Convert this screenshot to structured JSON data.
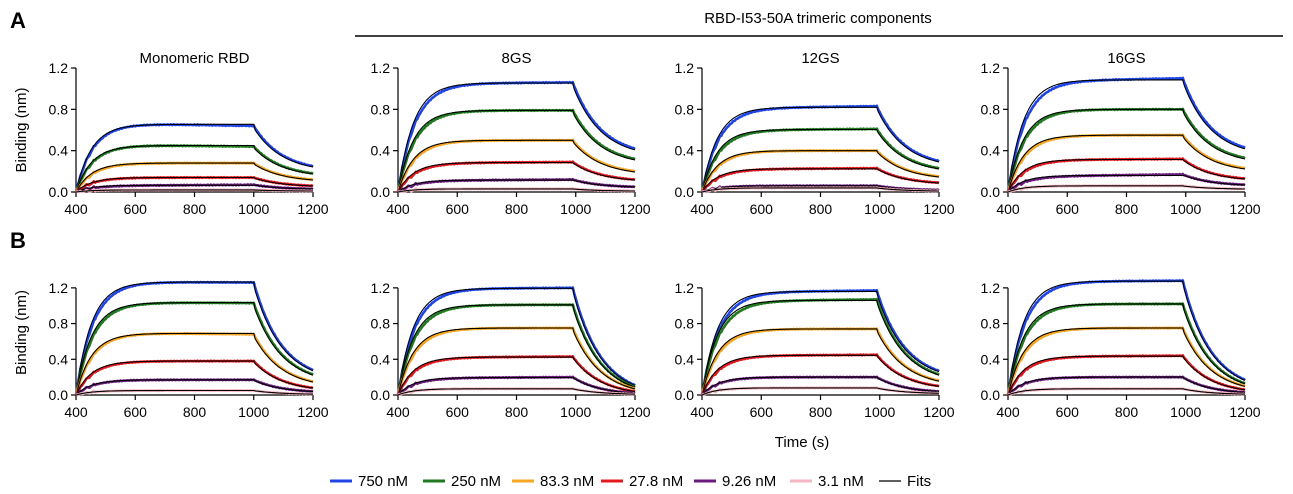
{
  "header": "RBD-I53-50A trimeric components",
  "panel_labels": [
    "A",
    "B"
  ],
  "legend": [
    {
      "label": "750 nM",
      "color": "#1f45e6"
    },
    {
      "label": "250 nM",
      "color": "#1f7a1f"
    },
    {
      "label": "83.3 nM",
      "color": "#f5a623"
    },
    {
      "label": "27.8 nM",
      "color": "#e3191f"
    },
    {
      "label": "9.26 nM",
      "color": "#6a1b7c"
    },
    {
      "label": "3.1 nM",
      "color": "#f4b6c2"
    },
    {
      "label": "Fits",
      "color": "#000000"
    }
  ],
  "chart_data": [
    {
      "type": "line",
      "row": "A",
      "title": "Monomeric RBD",
      "ylabel": "Binding (nm)",
      "xlabel": "",
      "xlim": [
        400,
        1200
      ],
      "ylim": [
        0,
        1.2
      ],
      "xticks": [
        400,
        600,
        800,
        1000,
        1200
      ],
      "yticks": [
        0.0,
        0.4,
        0.8,
        1.2
      ],
      "tick_labels_y": [
        "0.0",
        "0.4",
        "0.8",
        "1.2"
      ],
      "association_end": 1000,
      "series": [
        {
          "name": "750 nM",
          "plateau": 0.67,
          "end": 0.64,
          "final": 0.25
        },
        {
          "name": "250 nM",
          "plateau": 0.46,
          "end": 0.44,
          "final": 0.18
        },
        {
          "name": "83.3 nM",
          "plateau": 0.28,
          "end": 0.28,
          "final": 0.12
        },
        {
          "name": "27.8 nM",
          "plateau": 0.14,
          "end": 0.14,
          "final": 0.06
        },
        {
          "name": "9.26 nM",
          "plateau": 0.06,
          "end": 0.07,
          "final": 0.03
        },
        {
          "name": "3.1 nM",
          "plateau": 0.02,
          "end": 0.02,
          "final": 0.01
        }
      ]
    },
    {
      "type": "line",
      "row": "A",
      "title": "8GS",
      "ylabel": "",
      "xlabel": "",
      "xlim": [
        400,
        1200
      ],
      "ylim": [
        0,
        1.2
      ],
      "xticks": [
        400,
        600,
        800,
        1000,
        1200
      ],
      "yticks": [
        0.0,
        0.4,
        0.8,
        1.2
      ],
      "tick_labels_y": [
        "0.0",
        "0.4",
        "0.8",
        "1.2"
      ],
      "association_end": 990,
      "series": [
        {
          "name": "750 nM",
          "plateau": 1.05,
          "end": 1.06,
          "final": 0.42
        },
        {
          "name": "250 nM",
          "plateau": 0.79,
          "end": 0.79,
          "final": 0.32
        },
        {
          "name": "83.3 nM",
          "plateau": 0.5,
          "end": 0.5,
          "final": 0.2
        },
        {
          "name": "27.8 nM",
          "plateau": 0.28,
          "end": 0.29,
          "final": 0.12
        },
        {
          "name": "9.26 nM",
          "plateau": 0.11,
          "end": 0.12,
          "final": 0.05
        },
        {
          "name": "3.1 nM",
          "plateau": 0.03,
          "end": 0.03,
          "final": 0.01
        }
      ]
    },
    {
      "type": "line",
      "row": "A",
      "title": "12GS",
      "ylabel": "",
      "xlabel": "",
      "xlim": [
        400,
        1200
      ],
      "ylim": [
        0,
        1.2
      ],
      "xticks": [
        400,
        600,
        800,
        1000,
        1200
      ],
      "yticks": [
        0.0,
        0.4,
        0.8,
        1.2
      ],
      "tick_labels_y": [
        "0.0",
        "0.4",
        "0.8",
        "1.2"
      ],
      "association_end": 990,
      "series": [
        {
          "name": "750 nM",
          "plateau": 0.81,
          "end": 0.83,
          "final": 0.3
        },
        {
          "name": "250 nM",
          "plateau": 0.6,
          "end": 0.61,
          "final": 0.23
        },
        {
          "name": "83.3 nM",
          "plateau": 0.4,
          "end": 0.4,
          "final": 0.15
        },
        {
          "name": "27.8 nM",
          "plateau": 0.22,
          "end": 0.23,
          "final": 0.09
        },
        {
          "name": "9.26 nM",
          "plateau": 0.06,
          "end": 0.06,
          "final": 0.02
        },
        {
          "name": "3.1 nM",
          "plateau": 0.04,
          "end": 0.04,
          "final": 0.01
        }
      ]
    },
    {
      "type": "line",
      "row": "A",
      "title": "16GS",
      "ylabel": "",
      "xlabel": "",
      "xlim": [
        400,
        1200
      ],
      "ylim": [
        0,
        1.2
      ],
      "xticks": [
        400,
        600,
        800,
        1000,
        1200
      ],
      "yticks": [
        0.0,
        0.4,
        0.8,
        1.2
      ],
      "tick_labels_y": [
        "0.0",
        "0.4",
        "0.8",
        "1.2"
      ],
      "association_end": 990,
      "series": [
        {
          "name": "750 nM",
          "plateau": 1.07,
          "end": 1.1,
          "final": 0.43
        },
        {
          "name": "250 nM",
          "plateau": 0.8,
          "end": 0.8,
          "final": 0.33
        },
        {
          "name": "83.3 nM",
          "plateau": 0.55,
          "end": 0.55,
          "final": 0.23
        },
        {
          "name": "27.8 nM",
          "plateau": 0.31,
          "end": 0.32,
          "final": 0.13
        },
        {
          "name": "9.26 nM",
          "plateau": 0.15,
          "end": 0.17,
          "final": 0.07
        },
        {
          "name": "3.1 nM",
          "plateau": 0.06,
          "end": 0.06,
          "final": 0.03
        }
      ]
    },
    {
      "type": "line",
      "row": "B",
      "title": "",
      "ylabel": "Binding (nm)",
      "xlabel": "",
      "xlim": [
        400,
        1200
      ],
      "ylim": [
        0,
        1.4
      ],
      "xticks": [
        400,
        600,
        800,
        1000,
        1200
      ],
      "yticks": [
        0.0,
        0.4,
        0.8,
        1.2
      ],
      "tick_labels_y": [
        "0.0",
        "0.4",
        "0.8",
        "1.2"
      ],
      "association_end": 1000,
      "series": [
        {
          "name": "750 nM",
          "plateau": 1.27,
          "end": 1.26,
          "final": 0.28
        },
        {
          "name": "250 nM",
          "plateau": 1.04,
          "end": 1.03,
          "final": 0.23
        },
        {
          "name": "83.3 nM",
          "plateau": 0.7,
          "end": 0.68,
          "final": 0.15
        },
        {
          "name": "27.8 nM",
          "plateau": 0.38,
          "end": 0.38,
          "final": 0.08
        },
        {
          "name": "9.26 nM",
          "plateau": 0.17,
          "end": 0.17,
          "final": 0.04
        },
        {
          "name": "3.1 nM",
          "plateau": 0.05,
          "end": 0.05,
          "final": 0.01
        }
      ]
    },
    {
      "type": "line",
      "row": "B",
      "title": "",
      "ylabel": "",
      "xlabel": "",
      "xlim": [
        400,
        1200
      ],
      "ylim": [
        0,
        1.4
      ],
      "xticks": [
        400,
        600,
        800,
        1000,
        1200
      ],
      "yticks": [
        0.0,
        0.4,
        0.8,
        1.2
      ],
      "tick_labels_y": [
        "0.0",
        "0.4",
        "0.8",
        "1.2"
      ],
      "association_end": 990,
      "series": [
        {
          "name": "750 nM",
          "plateau": 1.19,
          "end": 1.2,
          "final": 0.11
        },
        {
          "name": "250 nM",
          "plateau": 1.01,
          "end": 1.01,
          "final": 0.09
        },
        {
          "name": "83.3 nM",
          "plateau": 0.75,
          "end": 0.75,
          "final": 0.07
        },
        {
          "name": "27.8 nM",
          "plateau": 0.42,
          "end": 0.43,
          "final": 0.04
        },
        {
          "name": "9.26 nM",
          "plateau": 0.19,
          "end": 0.2,
          "final": 0.02
        },
        {
          "name": "3.1 nM",
          "plateau": 0.07,
          "end": 0.07,
          "final": 0.01
        }
      ]
    },
    {
      "type": "line",
      "row": "B",
      "title": "",
      "ylabel": "",
      "xlabel": "Time (s)",
      "xlim": [
        400,
        1200
      ],
      "ylim": [
        0,
        1.4
      ],
      "xticks": [
        400,
        600,
        800,
        1000,
        1200
      ],
      "yticks": [
        0.0,
        0.4,
        0.8,
        1.2
      ],
      "tick_labels_y": [
        "0.0",
        "0.4",
        "0.8",
        "1.2"
      ],
      "association_end": 990,
      "series": [
        {
          "name": "750 nM",
          "plateau": 1.15,
          "end": 1.17,
          "final": 0.27
        },
        {
          "name": "250 nM",
          "plateau": 1.05,
          "end": 1.07,
          "final": 0.23
        },
        {
          "name": "83.3 nM",
          "plateau": 0.74,
          "end": 0.74,
          "final": 0.16
        },
        {
          "name": "27.8 nM",
          "plateau": 0.44,
          "end": 0.45,
          "final": 0.1
        },
        {
          "name": "9.26 nM",
          "plateau": 0.2,
          "end": 0.2,
          "final": 0.04
        },
        {
          "name": "3.1 nM",
          "plateau": 0.08,
          "end": 0.08,
          "final": 0.02
        }
      ]
    },
    {
      "type": "line",
      "row": "B",
      "title": "",
      "ylabel": "",
      "xlabel": "",
      "xlim": [
        400,
        1200
      ],
      "ylim": [
        0,
        1.4
      ],
      "xticks": [
        400,
        600,
        800,
        1000,
        1200
      ],
      "yticks": [
        0.0,
        0.4,
        0.8,
        1.2
      ],
      "tick_labels_y": [
        "0.0",
        "0.4",
        "0.8",
        "1.2"
      ],
      "association_end": 990,
      "series": [
        {
          "name": "750 nM",
          "plateau": 1.27,
          "end": 1.28,
          "final": 0.17
        },
        {
          "name": "250 nM",
          "plateau": 1.02,
          "end": 1.02,
          "final": 0.13
        },
        {
          "name": "83.3 nM",
          "plateau": 0.75,
          "end": 0.75,
          "final": 0.1
        },
        {
          "name": "27.8 nM",
          "plateau": 0.43,
          "end": 0.44,
          "final": 0.06
        },
        {
          "name": "9.26 nM",
          "plateau": 0.2,
          "end": 0.2,
          "final": 0.03
        },
        {
          "name": "3.1 nM",
          "plateau": 0.07,
          "end": 0.07,
          "final": 0.01
        }
      ]
    }
  ]
}
